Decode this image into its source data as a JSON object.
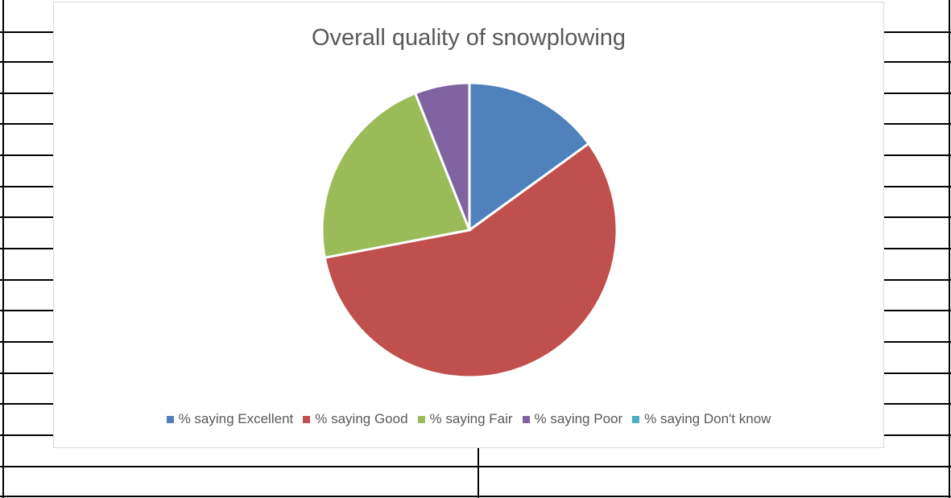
{
  "chart_data": {
    "type": "pie",
    "title": "Overall quality of snowplowing",
    "categories": [
      "% saying Excellent",
      "% saying Good",
      "% saying Fair",
      "% saying Poor",
      "% saying Don't know"
    ],
    "values": [
      15,
      57,
      22,
      6,
      0
    ],
    "colors": [
      "#4f81bd",
      "#c0504d",
      "#9bbb59",
      "#8064a2",
      "#4bacc6"
    ],
    "legend_position": "bottom"
  }
}
